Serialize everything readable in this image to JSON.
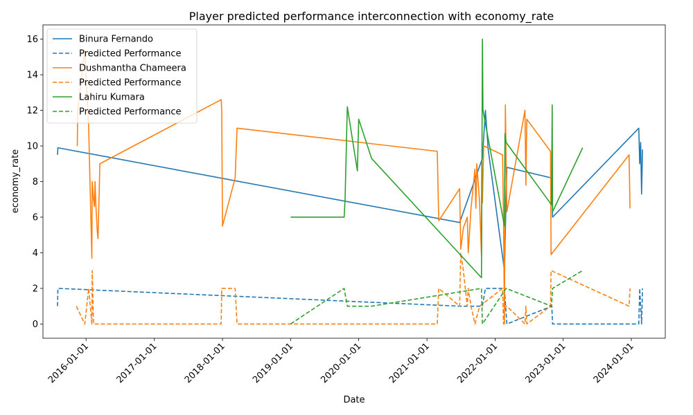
{
  "chart_data": {
    "type": "line",
    "title": "Player predicted performance interconnection with economy_rate",
    "xlabel": "Date",
    "ylabel": "economy_rate",
    "xlim": [
      "2015-05-15",
      "2024-07-01"
    ],
    "ylim": [
      -0.8,
      16.8
    ],
    "yticks": [
      0,
      2,
      4,
      6,
      8,
      10,
      12,
      14,
      16
    ],
    "xticks": [
      "2016-01-01",
      "2017-01-01",
      "2018-01-01",
      "2019-01-01",
      "2020-01-01",
      "2021-01-01",
      "2022-01-01",
      "2023-01-01",
      "2024-01-01"
    ],
    "grid": false,
    "legend_position": "top-left",
    "series": [
      {
        "name": "Binura Fernando",
        "color": "#1f77b4",
        "dash": "solid",
        "points": [
          [
            "2015-08-01",
            9.5
          ],
          [
            "2015-08-03",
            9.9
          ],
          [
            "2021-06-25",
            5.7
          ],
          [
            "2021-10-25",
            9.3
          ],
          [
            "2021-11-10",
            12.0
          ],
          [
            "2021-11-25",
            9.8
          ],
          [
            "2022-02-20",
            3.0
          ],
          [
            "2022-03-05",
            8.8
          ],
          [
            "2022-11-01",
            8.2
          ],
          [
            "2022-11-05",
            6.0
          ],
          [
            "2024-02-10",
            11.0
          ],
          [
            "2024-02-15",
            9.0
          ],
          [
            "2024-02-20",
            10.2
          ],
          [
            "2024-02-25",
            7.3
          ],
          [
            "2024-03-01",
            9.8
          ]
        ]
      },
      {
        "name": "Predicted Performance",
        "color": "#1f77b4",
        "dash": "dashed",
        "points": [
          [
            "2015-08-01",
            1.0
          ],
          [
            "2015-08-03",
            2.0
          ],
          [
            "2021-06-25",
            1.0
          ],
          [
            "2021-10-25",
            1.0
          ],
          [
            "2021-11-10",
            2.0
          ],
          [
            "2022-02-20",
            2.0
          ],
          [
            "2022-03-05",
            0.0
          ],
          [
            "2022-11-01",
            1.0
          ],
          [
            "2022-11-05",
            0.0
          ],
          [
            "2024-02-10",
            0.0
          ],
          [
            "2024-02-15",
            2.0
          ],
          [
            "2024-02-25",
            0.0
          ],
          [
            "2024-03-01",
            2.0
          ]
        ]
      },
      {
        "name": "Dushmantha Chameera",
        "color": "#ff7f0e",
        "dash": "solid",
        "points": [
          [
            "2015-11-15",
            10.0
          ],
          [
            "2015-11-17",
            12.0
          ],
          [
            "2015-12-25",
            15.4
          ],
          [
            "2016-01-01",
            14.0
          ],
          [
            "2016-01-15",
            11.0
          ],
          [
            "2016-02-01",
            3.7
          ],
          [
            "2016-02-03",
            8.0
          ],
          [
            "2016-02-10",
            7.0
          ],
          [
            "2016-02-15",
            6.6
          ],
          [
            "2016-02-18",
            8.0
          ],
          [
            "2016-02-22",
            6.8
          ],
          [
            "2016-03-01",
            5.2
          ],
          [
            "2016-03-05",
            4.8
          ],
          [
            "2016-03-15",
            9.0
          ],
          [
            "2017-12-25",
            12.6
          ],
          [
            "2017-12-28",
            12.0
          ],
          [
            "2018-01-01",
            5.5
          ],
          [
            "2018-03-10",
            8.2
          ],
          [
            "2018-03-20",
            11.0
          ],
          [
            "2021-02-25",
            9.7
          ],
          [
            "2021-03-05",
            5.8
          ],
          [
            "2021-06-25",
            7.6
          ],
          [
            "2021-07-01",
            4.2
          ],
          [
            "2021-07-15",
            5.4
          ],
          [
            "2021-08-05",
            6.0
          ],
          [
            "2021-08-10",
            4.0
          ],
          [
            "2021-08-25",
            6.5
          ],
          [
            "2021-09-15",
            8.7
          ],
          [
            "2021-09-20",
            6.5
          ],
          [
            "2021-09-25",
            9.0
          ],
          [
            "2021-10-10",
            6.8
          ],
          [
            "2021-10-20",
            3.8
          ],
          [
            "2021-10-22",
            9.0
          ],
          [
            "2021-10-25",
            6.8
          ],
          [
            "2021-11-01",
            10.0
          ],
          [
            "2022-02-10",
            9.5
          ],
          [
            "2022-02-15",
            6.0
          ],
          [
            "2022-02-20",
            0.0
          ],
          [
            "2022-02-25",
            12.3
          ],
          [
            "2022-03-05",
            6.3
          ],
          [
            "2022-06-10",
            12.0
          ],
          [
            "2022-06-15",
            7.8
          ],
          [
            "2022-06-20",
            11.5
          ],
          [
            "2022-10-25",
            9.7
          ],
          [
            "2022-10-28",
            3.9
          ],
          [
            "2023-12-20",
            9.5
          ],
          [
            "2023-12-25",
            6.5
          ]
        ]
      },
      {
        "name": "Predicted Performance",
        "color": "#ff7f0e",
        "dash": "dashed",
        "points": [
          [
            "2015-11-10",
            1.0
          ],
          [
            "2015-12-25",
            0.0
          ],
          [
            "2016-01-15",
            2.0
          ],
          [
            "2016-02-01",
            0.0
          ],
          [
            "2016-02-03",
            3.0
          ],
          [
            "2016-02-10",
            0.0
          ],
          [
            "2017-12-25",
            0.0
          ],
          [
            "2017-12-28",
            2.0
          ],
          [
            "2018-03-10",
            2.0
          ],
          [
            "2018-03-20",
            0.0
          ],
          [
            "2021-02-25",
            0.0
          ],
          [
            "2021-03-05",
            2.0
          ],
          [
            "2021-06-25",
            1.0
          ],
          [
            "2021-07-01",
            4.0
          ],
          [
            "2021-07-15",
            3.0
          ],
          [
            "2021-08-05",
            1.0
          ],
          [
            "2021-08-10",
            2.0
          ],
          [
            "2021-08-25",
            1.0
          ],
          [
            "2021-09-15",
            0.0
          ],
          [
            "2021-10-10",
            1.0
          ],
          [
            "2022-02-10",
            2.0
          ],
          [
            "2022-02-15",
            0.0
          ],
          [
            "2022-02-20",
            1.0
          ],
          [
            "2022-03-05",
            1.0
          ],
          [
            "2022-06-10",
            0.0
          ],
          [
            "2022-06-15",
            1.0
          ],
          [
            "2022-06-20",
            0.0
          ],
          [
            "2022-10-25",
            1.0
          ],
          [
            "2022-10-28",
            3.0
          ],
          [
            "2023-12-20",
            1.0
          ],
          [
            "2023-12-25",
            2.0
          ]
        ]
      },
      {
        "name": "Lahiru Kumara",
        "color": "#2ca02c",
        "dash": "solid",
        "points": [
          [
            "2019-01-01",
            6.0
          ],
          [
            "2019-10-15",
            6.0
          ],
          [
            "2019-10-20",
            7.0
          ],
          [
            "2019-11-01",
            12.2
          ],
          [
            "2019-12-25",
            8.6
          ],
          [
            "2020-01-01",
            11.5
          ],
          [
            "2020-03-10",
            9.3
          ],
          [
            "2021-10-20",
            2.6
          ],
          [
            "2021-10-21",
            5.0
          ],
          [
            "2021-10-25",
            16.0
          ],
          [
            "2021-10-28",
            12.0
          ],
          [
            "2022-02-20",
            5.5
          ],
          [
            "2022-02-23",
            10.7
          ],
          [
            "2022-03-01",
            10.2
          ],
          [
            "2022-10-30",
            6.7
          ],
          [
            "2022-11-03",
            12.3
          ],
          [
            "2022-11-05",
            6.3
          ],
          [
            "2023-04-15",
            9.9
          ]
        ]
      },
      {
        "name": "Predicted Performance",
        "color": "#2ca02c",
        "dash": "dashed",
        "points": [
          [
            "2019-01-01",
            0.0
          ],
          [
            "2019-10-15",
            2.0
          ],
          [
            "2019-11-01",
            1.0
          ],
          [
            "2020-03-10",
            1.0
          ],
          [
            "2021-10-20",
            2.0
          ],
          [
            "2021-10-25",
            0.0
          ],
          [
            "2022-03-01",
            2.0
          ],
          [
            "2022-10-30",
            1.0
          ],
          [
            "2022-11-05",
            2.0
          ],
          [
            "2023-04-15",
            3.0
          ]
        ]
      }
    ]
  }
}
